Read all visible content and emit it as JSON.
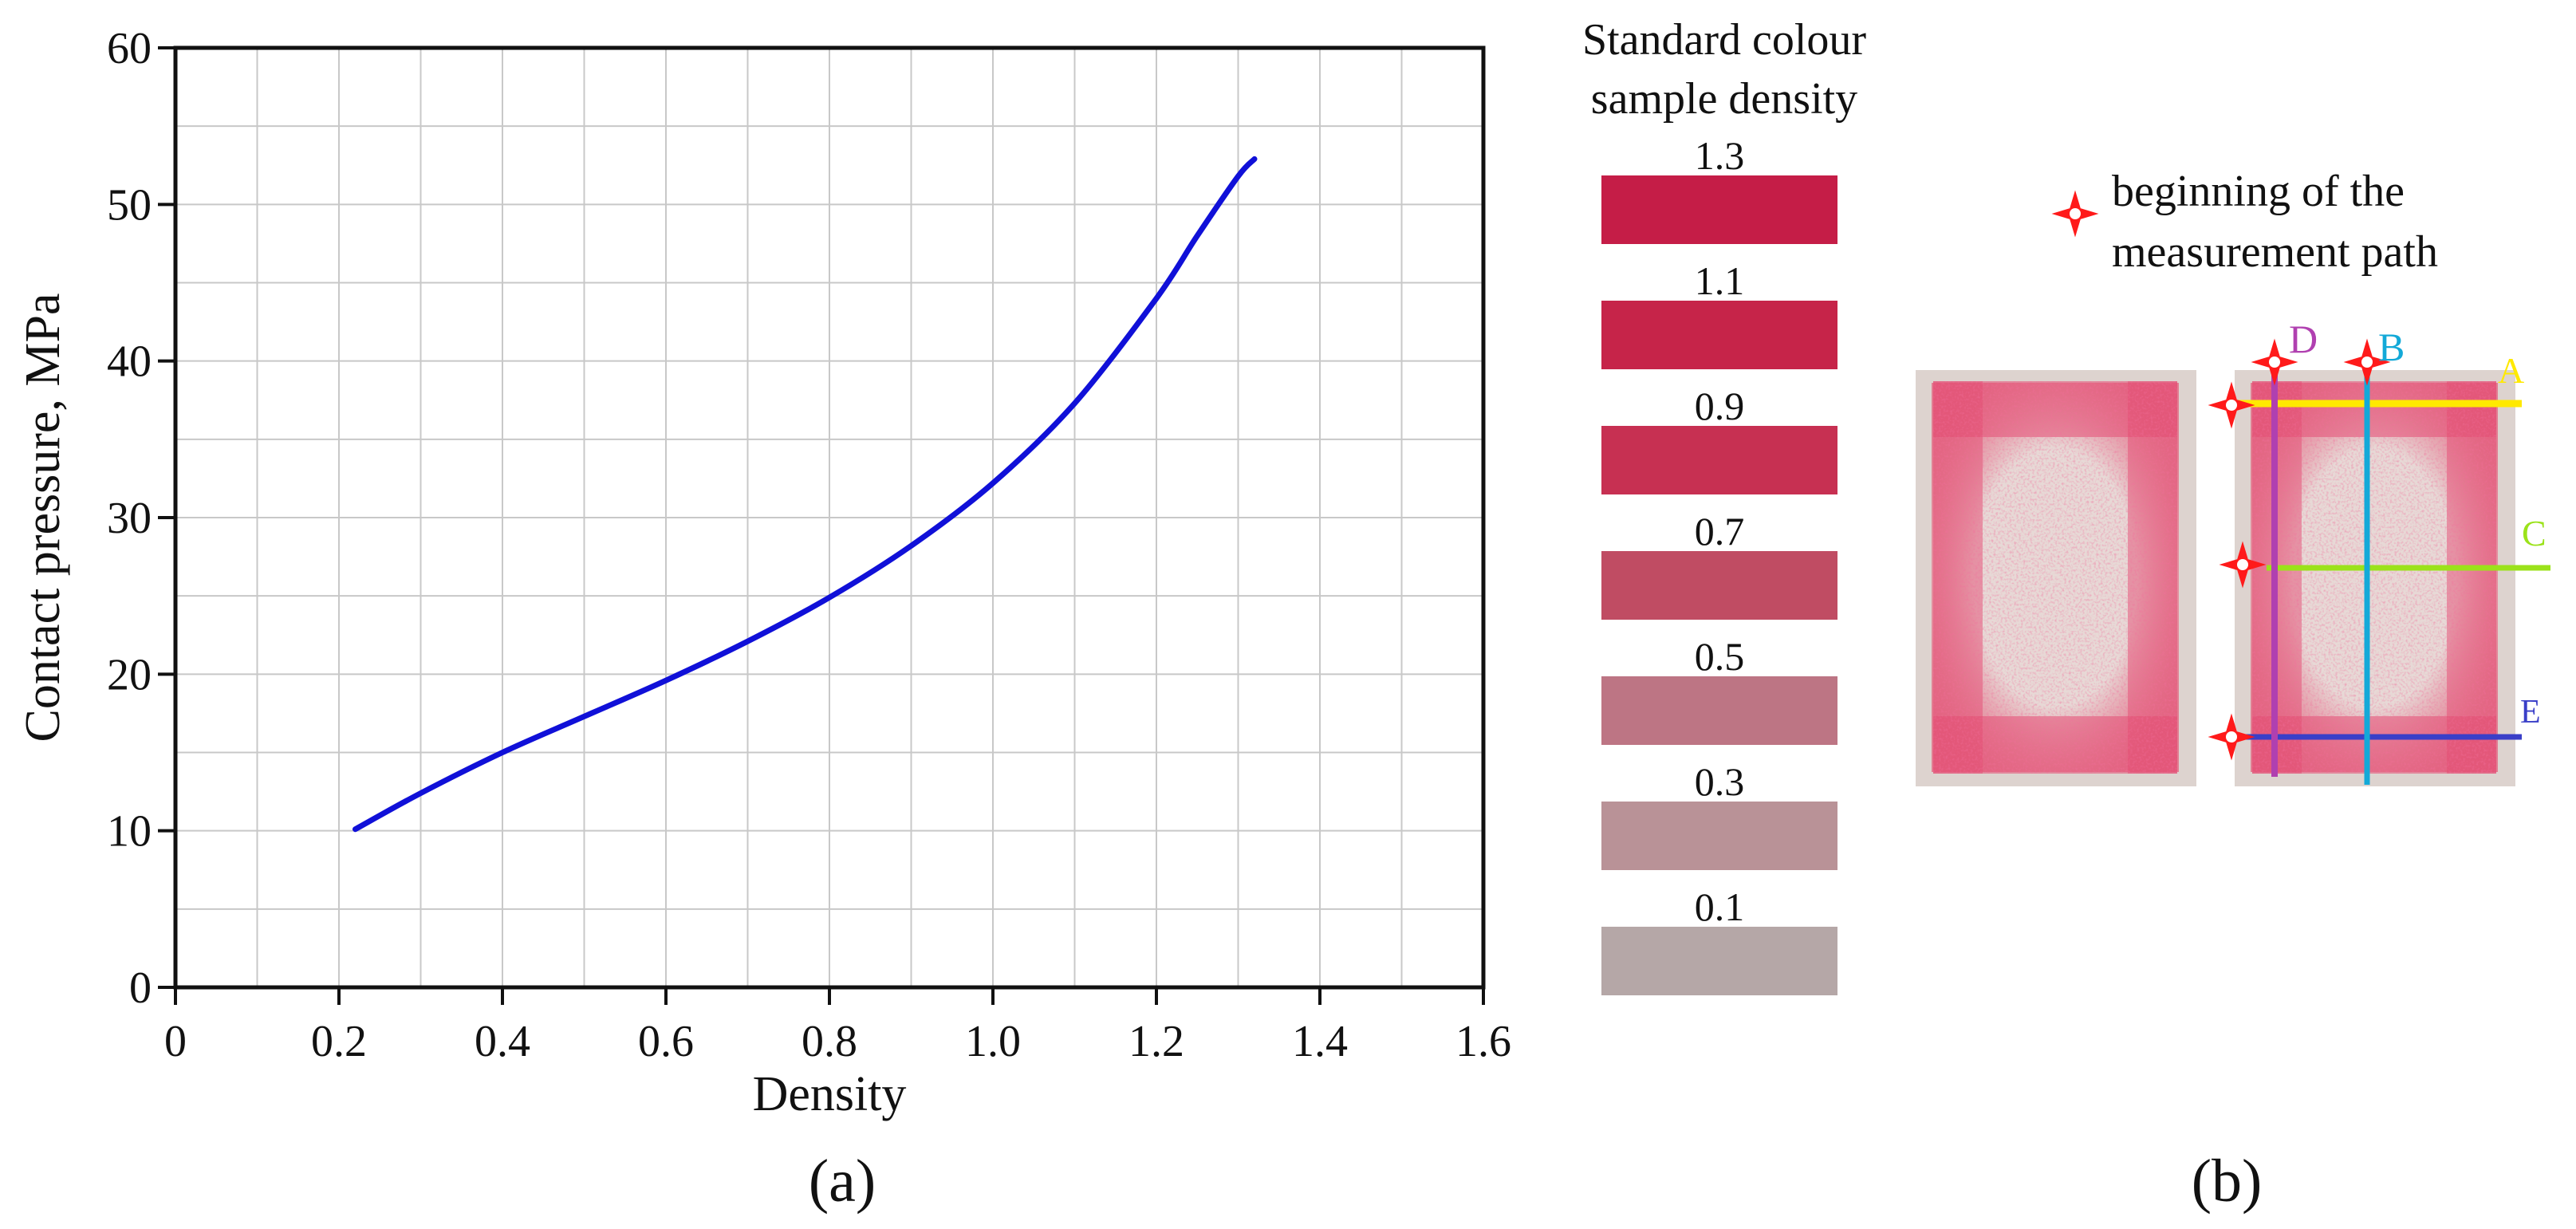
{
  "chart_data": {
    "type": "line",
    "title": "",
    "xlabel": "Density",
    "ylabel": "Contact pressure, MPa",
    "xlim": [
      0,
      1.6
    ],
    "ylim": [
      0,
      60
    ],
    "x_ticks": [
      "0",
      "0.2",
      "0.4",
      "0.6",
      "0.8",
      "1.0",
      "1.2",
      "1.4",
      "1.6"
    ],
    "y_ticks": [
      "0",
      "10",
      "20",
      "30",
      "40",
      "50",
      "60"
    ],
    "x_minor_step": 0.1,
    "y_minor_step": 5,
    "grid": true,
    "series": [
      {
        "color": "#1010d8",
        "x": [
          0.22,
          0.3,
          0.4,
          0.5,
          0.6,
          0.7,
          0.8,
          0.9,
          1.0,
          1.1,
          1.2,
          1.25,
          1.3,
          1.32
        ],
        "y": [
          10.1,
          12.4,
          15.0,
          17.3,
          19.6,
          22.1,
          24.9,
          28.2,
          32.2,
          37.3,
          44.0,
          48.0,
          51.8,
          52.9
        ]
      }
    ]
  },
  "panel_labels": {
    "a": "(a)",
    "b": "(b)"
  },
  "swatches": {
    "title_line1": "Standard colour",
    "title_line2": "sample density",
    "items": [
      {
        "label": "1.3",
        "color": "#c51d47"
      },
      {
        "label": "1.1",
        "color": "#c62449"
      },
      {
        "label": "0.9",
        "color": "#c73052"
      },
      {
        "label": "0.7",
        "color": "#c04c63"
      },
      {
        "label": "0.5",
        "color": "#bd7584"
      },
      {
        "label": "0.3",
        "color": "#b99297"
      },
      {
        "label": "0.1",
        "color": "#b5a7a7"
      }
    ]
  },
  "measurement": {
    "legend_line1": "beginning of the",
    "legend_line2": "measurement path",
    "marker_color": "#ff1a1a",
    "paths": [
      {
        "label": "A",
        "color": "#ffe900"
      },
      {
        "label": "B",
        "color": "#13a9d8"
      },
      {
        "label": "C",
        "color": "#9be21a"
      },
      {
        "label": "D",
        "color": "#b040b0"
      },
      {
        "label": "E",
        "color": "#3a3fc8"
      }
    ]
  }
}
